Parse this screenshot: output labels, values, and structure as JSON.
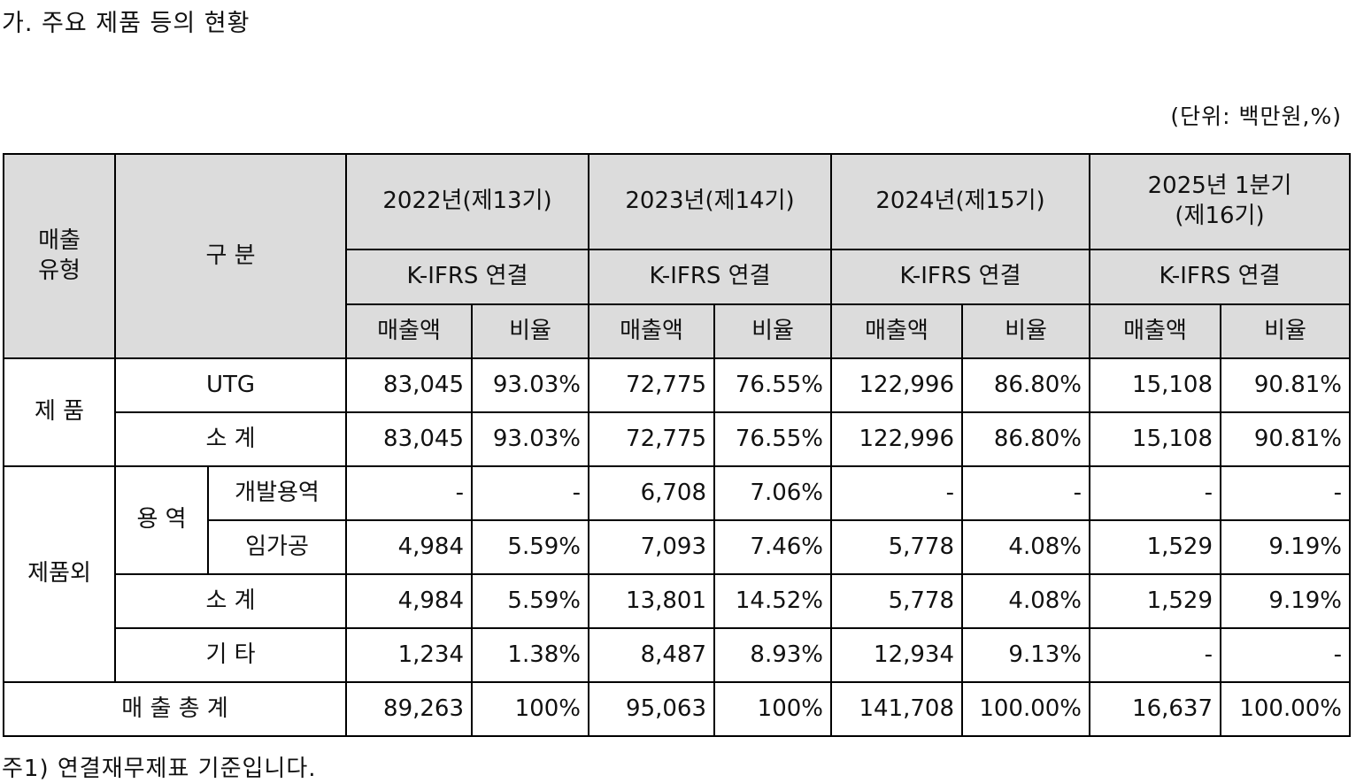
{
  "title": "가. 주요 제품 등의 현황",
  "unit": "(단위: 백만원,%)",
  "header": {
    "sales_type": "매출\n유형",
    "category": "구 분",
    "years": [
      {
        "label": "2022년(제13기)",
        "basis": "K-IFRS 연결"
      },
      {
        "label": "2023년(제14기)",
        "basis": "K-IFRS 연결"
      },
      {
        "label": "2024년(제15기)",
        "basis": "K-IFRS 연결"
      },
      {
        "label": "2025년 1분기\n(제16기)",
        "basis": "K-IFRS 연결"
      }
    ],
    "sales_label": "매출액",
    "ratio_label": "비율"
  },
  "rows": {
    "product_group": "제 품",
    "utg": {
      "label": "UTG",
      "values": [
        "83,045",
        "93.03%",
        "72,775",
        "76.55%",
        "122,996",
        "86.80%",
        "15,108",
        "90.81%"
      ]
    },
    "product_subtotal": {
      "label": "소 계",
      "values": [
        "83,045",
        "93.03%",
        "72,775",
        "76.55%",
        "122,996",
        "86.80%",
        "15,108",
        "90.81%"
      ]
    },
    "non_product_group": "제품외",
    "service_group": "용 역",
    "dev_service": {
      "label": "개발용역",
      "values": [
        "-",
        "-",
        "6,708",
        "7.06%",
        "-",
        "-",
        "-",
        "-"
      ]
    },
    "processing": {
      "label": "임가공",
      "values": [
        "4,984",
        "5.59%",
        "7,093",
        "7.46%",
        "5,778",
        "4.08%",
        "1,529",
        "9.19%"
      ]
    },
    "non_product_subtotal": {
      "label": "소 계",
      "values": [
        "4,984",
        "5.59%",
        "13,801",
        "14.52%",
        "5,778",
        "4.08%",
        "1,529",
        "9.19%"
      ]
    },
    "other": {
      "label": "기 타",
      "values": [
        "1,234",
        "1.38%",
        "8,487",
        "8.93%",
        "12,934",
        "9.13%",
        "-",
        "-"
      ]
    },
    "total": {
      "label": "매 출 총 계",
      "values": [
        "89,263",
        "100%",
        "95,063",
        "100%",
        "141,708",
        "100.00%",
        "16,637",
        "100.00%"
      ]
    }
  },
  "footnote": "주1) 연결재무제표 기준입니다."
}
